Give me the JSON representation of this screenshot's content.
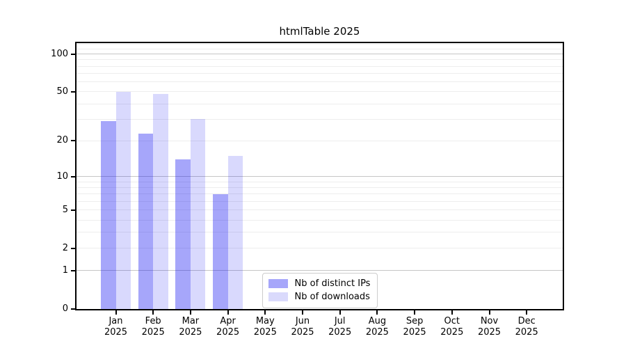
{
  "figure_title": "htmlTable 2025",
  "chart_data": {
    "type": "bar",
    "title": "htmlTable 2025",
    "categories": [
      "Jan",
      "Feb",
      "Mar",
      "Apr",
      "May",
      "Jun",
      "Jul",
      "Aug",
      "Sep",
      "Oct",
      "Nov",
      "Dec"
    ],
    "year_label": "2025",
    "series": [
      {
        "name": "Nb of distinct IPs",
        "color": "#a6a6fa",
        "fill_rgba": "rgba(0,0,240,0.35)",
        "values": [
          29,
          23,
          14,
          7,
          null,
          null,
          null,
          null,
          null,
          null,
          null,
          null
        ]
      },
      {
        "name": "Nb of downloads",
        "color": "#dadafc",
        "fill_rgba": "rgba(0,0,240,0.15)",
        "values": [
          50,
          48,
          30,
          15,
          null,
          null,
          null,
          null,
          null,
          null,
          null,
          null
        ]
      }
    ],
    "xlabel": "",
    "ylabel": "",
    "yscale": "log1p",
    "ylim": [
      0,
      122
    ],
    "yticks": [
      0,
      1,
      2,
      5,
      10,
      20,
      50,
      100
    ],
    "grid": {
      "orientation": "horizontal",
      "major_at": [
        1,
        10,
        100
      ],
      "minor_at": [
        2,
        3,
        4,
        5,
        6,
        7,
        8,
        9,
        20,
        30,
        40,
        50,
        60,
        70,
        80,
        90,
        110,
        120
      ],
      "major_color": "#c6c6c6",
      "minor_color": "#ededed"
    },
    "legend_position": "lower center",
    "frame": true,
    "background": "#ffffff",
    "axis_color": "#000000"
  }
}
